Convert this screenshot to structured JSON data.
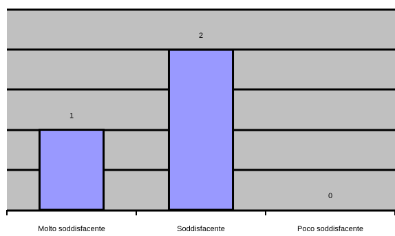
{
  "chart_data": {
    "type": "bar",
    "title": "",
    "xlabel": "",
    "ylabel": "",
    "categories": [
      "Molto soddisfacente",
      "Soddisfacente",
      "Poco soddisfacente"
    ],
    "values": [
      1,
      2,
      0
    ],
    "data_labels": [
      "1",
      "2",
      "0"
    ],
    "ylim": [
      0,
      2.5
    ],
    "ytick_step": 0.5,
    "grid": true,
    "legend": "none",
    "colors": {
      "plot_background": "#c0c0c0",
      "bar_fill": "#9999ff",
      "bar_stroke": "#000000",
      "gridline": "#000000"
    }
  }
}
